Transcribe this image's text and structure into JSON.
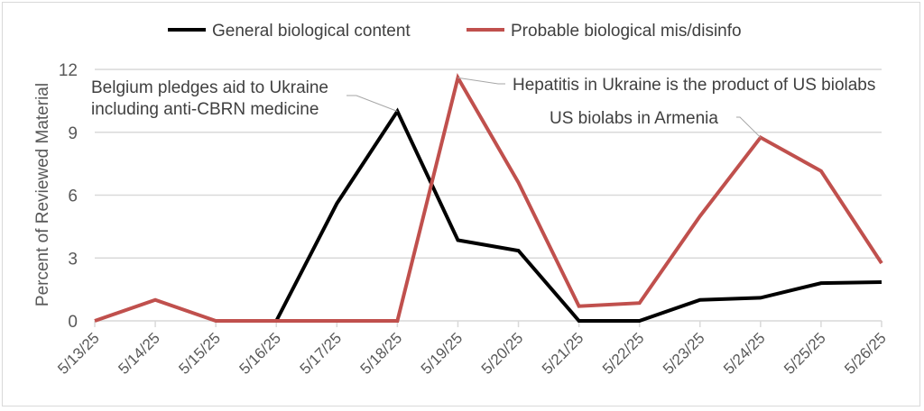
{
  "chart_data": {
    "type": "line",
    "title": "",
    "xlabel": "",
    "ylabel": "Percent of Reviewed Material",
    "ylim": [
      0,
      12
    ],
    "yticks": [
      0,
      3,
      6,
      9,
      12
    ],
    "grid": true,
    "legend_position": "top",
    "categories": [
      "5/13/25",
      "5/14/25",
      "5/15/25",
      "5/16/25",
      "5/17/25",
      "5/18/25",
      "5/19/25",
      "5/20/25",
      "5/21/25",
      "5/22/25",
      "5/23/25",
      "5/24/25",
      "5/25/25",
      "5/26/25"
    ],
    "series": [
      {
        "name": "General biological content",
        "color": "#000000",
        "values": [
          null,
          null,
          null,
          0,
          5.6,
          10.0,
          3.85,
          3.35,
          0,
          0,
          1.0,
          1.1,
          1.8,
          1.85
        ]
      },
      {
        "name": "Probable biological mis/disinfo",
        "color": "#c0504d",
        "values": [
          0,
          1.0,
          0,
          0,
          0,
          0,
          11.6,
          6.6,
          0.7,
          0.85,
          5.0,
          8.75,
          7.15,
          2.75
        ]
      }
    ],
    "annotations": [
      {
        "lines": [
          "Belgium pledges aid to Ukraine",
          "including anti-CBRN medicine"
        ],
        "series": 0,
        "category": "5/18/25"
      },
      {
        "lines": [
          "Hepatitis in Ukraine is the product of US biolabs"
        ],
        "series": 1,
        "category": "5/19/25"
      },
      {
        "lines": [
          "US biolabs in Armenia"
        ],
        "series": 1,
        "category": "5/24/25"
      }
    ]
  }
}
